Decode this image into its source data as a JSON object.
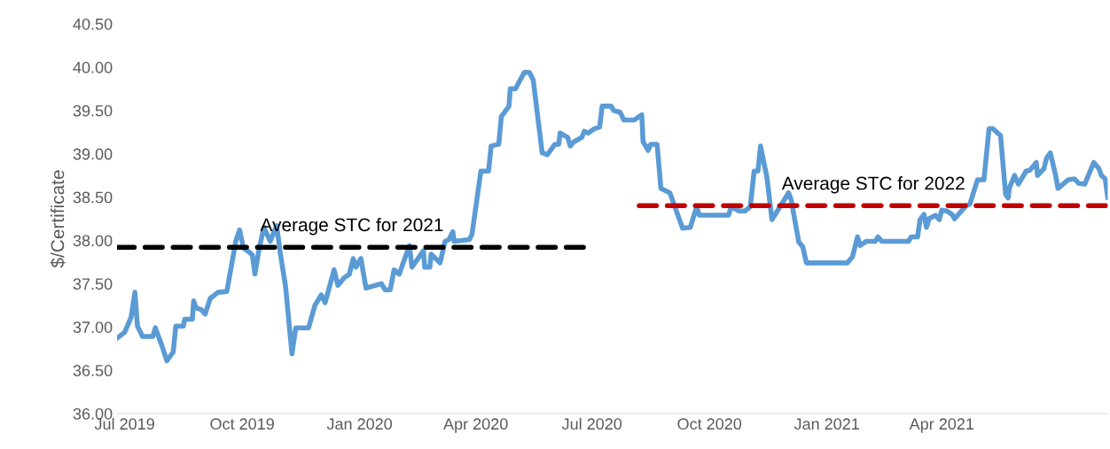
{
  "chart_data": {
    "type": "line",
    "ylabel": "$/Certificate",
    "xlim": [
      "2019-06-25",
      "2021-08-09"
    ],
    "xticks": [
      {
        "value": "2019-07-01",
        "label": "Jul 2019"
      },
      {
        "value": "2019-10-01",
        "label": "Oct 2019"
      },
      {
        "value": "2020-01-01",
        "label": "Jan 2020"
      },
      {
        "value": "2020-04-01",
        "label": "Apr 2020"
      },
      {
        "value": "2020-07-01",
        "label": "Jul 2020"
      },
      {
        "value": "2020-10-01",
        "label": "Oct 2020"
      },
      {
        "value": "2021-01-01",
        "label": "Jan 2021"
      },
      {
        "value": "2021-04-01",
        "label": "Apr 2021"
      }
    ],
    "ylim": [
      36,
      40.5
    ],
    "yticks": [
      {
        "value": 36,
        "label": "36.00"
      },
      {
        "value": 36.5,
        "label": "36.50"
      },
      {
        "value": 37,
        "label": "37.00"
      },
      {
        "value": 37.5,
        "label": "37.50"
      },
      {
        "value": 38,
        "label": "38.00"
      },
      {
        "value": 38.5,
        "label": "38.50"
      },
      {
        "value": 39,
        "label": "39.00"
      },
      {
        "value": 39.5,
        "label": "39.50"
      },
      {
        "value": 40,
        "label": "40.00"
      },
      {
        "value": 40.5,
        "label": "40.50"
      }
    ],
    "grid": false,
    "series": [
      {
        "color": "#5b9bd5",
        "line_style": "solid",
        "x": [
          "2019-06-25",
          "2019-07-01",
          "2019-07-06",
          "2019-07-09",
          "2019-07-11",
          "2019-07-15",
          "2019-07-23",
          "2019-07-25",
          "2019-07-30",
          "2019-08-03",
          "2019-08-08",
          "2019-08-10",
          "2019-08-16",
          "2019-08-17",
          "2019-08-23",
          "2019-08-24",
          "2019-08-26",
          "2019-08-30",
          "2019-09-02",
          "2019-09-06",
          "2019-09-12",
          "2019-09-19",
          "2019-09-23",
          "2019-09-26",
          "2019-09-29",
          "2019-10-02",
          "2019-10-07",
          "2019-10-09",
          "2019-10-11",
          "2019-10-14",
          "2019-10-18",
          "2019-10-23",
          "2019-10-28",
          "2019-10-31",
          "2019-11-04",
          "2019-11-09",
          "2019-11-12",
          "2019-11-22",
          "2019-11-27",
          "2019-12-02",
          "2019-12-05",
          "2019-12-12",
          "2019-12-15",
          "2019-12-20",
          "2019-12-24",
          "2019-12-27",
          "2019-12-29",
          "2020-01-02",
          "2020-01-06",
          "2020-01-18",
          "2020-01-21",
          "2020-01-25",
          "2020-01-28",
          "2020-02-01",
          "2020-02-09",
          "2020-02-11",
          "2020-02-20",
          "2020-02-21",
          "2020-02-25",
          "2020-02-26",
          "2020-03-04",
          "2020-03-08",
          "2020-03-11",
          "2020-03-14",
          "2020-03-15",
          "2020-03-27",
          "2020-03-29",
          "2020-04-05",
          "2020-04-11",
          "2020-04-13",
          "2020-04-19",
          "2020-04-21",
          "2020-04-27",
          "2020-04-28",
          "2020-05-02",
          "2020-05-09",
          "2020-05-13",
          "2020-05-16",
          "2020-05-23",
          "2020-05-27",
          "2020-06-02",
          "2020-06-05",
          "2020-06-06",
          "2020-06-12",
          "2020-06-14",
          "2020-06-17",
          "2020-06-23",
          "2020-06-25",
          "2020-06-28",
          "2020-07-03",
          "2020-07-07",
          "2020-07-09",
          "2020-07-16",
          "2020-07-18",
          "2020-07-23",
          "2020-07-26",
          "2020-08-03",
          "2020-08-09",
          "2020-08-10",
          "2020-08-14",
          "2020-08-16",
          "2020-08-21",
          "2020-08-24",
          "2020-08-31",
          "2020-09-10",
          "2020-09-16",
          "2020-09-21",
          "2020-09-23",
          "2020-10-16",
          "2020-10-18",
          "2020-10-24",
          "2020-10-29",
          "2020-11-02",
          "2020-11-05",
          "2020-11-08",
          "2020-11-10",
          "2020-11-15",
          "2020-11-19",
          "2020-12-02",
          "2020-12-04",
          "2020-12-10",
          "2020-12-13",
          "2020-12-16",
          "2021-01-17",
          "2021-01-21",
          "2021-01-25",
          "2021-01-27",
          "2021-02-01",
          "2021-02-08",
          "2021-02-10",
          "2021-02-13",
          "2021-03-06",
          "2021-03-08",
          "2021-03-13",
          "2021-03-15",
          "2021-03-18",
          "2021-03-20",
          "2021-03-22",
          "2021-03-27",
          "2021-03-30",
          "2021-04-01",
          "2021-04-05",
          "2021-04-09",
          "2021-04-11",
          "2021-04-20",
          "2021-04-23",
          "2021-04-29",
          "2021-05-04",
          "2021-05-08",
          "2021-05-11",
          "2021-05-17",
          "2021-05-21",
          "2021-05-23",
          "2021-05-24",
          "2021-05-28",
          "2021-05-31",
          "2021-06-06",
          "2021-06-09",
          "2021-06-14",
          "2021-06-15",
          "2021-06-20",
          "2021-06-22",
          "2021-06-25",
          "2021-06-29",
          "2021-07-01",
          "2021-07-09",
          "2021-07-14",
          "2021-07-17",
          "2021-07-22",
          "2021-07-29",
          "2021-08-02",
          "2021-08-04",
          "2021-08-07",
          "2021-08-09"
        ],
        "values": [
          36.87,
          36.94,
          37.11,
          37.4,
          37.01,
          36.89,
          36.89,
          36.99,
          36.79,
          36.61,
          36.71,
          37.01,
          37.01,
          37.09,
          37.09,
          37.3,
          37.22,
          37.2,
          37.15,
          37.33,
          37.4,
          37.41,
          37.74,
          37.99,
          38.12,
          37.91,
          37.86,
          37.83,
          37.61,
          37.88,
          38.15,
          37.99,
          38.17,
          37.84,
          37.47,
          36.69,
          36.99,
          36.99,
          37.25,
          37.37,
          37.28,
          37.66,
          37.48,
          37.57,
          37.61,
          37.79,
          37.69,
          37.79,
          37.45,
          37.5,
          37.43,
          37.43,
          37.66,
          37.61,
          37.94,
          37.69,
          37.88,
          37.69,
          37.69,
          37.84,
          37.74,
          37.99,
          38.01,
          38.1,
          37.99,
          38.01,
          38.07,
          38.8,
          38.8,
          39.09,
          39.11,
          39.43,
          39.55,
          39.75,
          39.75,
          39.94,
          39.94,
          39.85,
          39.01,
          38.99,
          39.11,
          39.11,
          39.24,
          39.19,
          39.09,
          39.14,
          39.19,
          39.26,
          39.24,
          39.29,
          39.31,
          39.55,
          39.55,
          39.5,
          39.48,
          39.39,
          39.39,
          39.45,
          39.14,
          39.04,
          39.11,
          39.11,
          38.6,
          38.55,
          38.14,
          38.15,
          38.39,
          38.29,
          38.29,
          38.39,
          38.34,
          38.34,
          38.39,
          38.8,
          38.8,
          39.09,
          38.73,
          38.24,
          38.55,
          38.47,
          37.98,
          37.93,
          37.74,
          37.74,
          37.81,
          38.04,
          37.94,
          37.99,
          37.99,
          38.04,
          37.99,
          37.99,
          38.04,
          38.04,
          38.24,
          38.3,
          38.15,
          38.25,
          38.29,
          38.24,
          38.35,
          38.34,
          38.3,
          38.25,
          38.4,
          38.42,
          38.7,
          38.7,
          39.29,
          39.29,
          39.21,
          38.53,
          38.49,
          38.61,
          38.75,
          38.65,
          38.8,
          38.81,
          38.9,
          38.75,
          38.83,
          38.95,
          39.01,
          38.76,
          38.6,
          38.7,
          38.71,
          38.66,
          38.65,
          38.9,
          38.83,
          38.75,
          38.71,
          38.49
        ]
      },
      {
        "name": "Average STC for 2021",
        "color": "#000000",
        "line_style": "dashed",
        "x": [
          "2019-06-25",
          "2020-06-27"
        ],
        "values": [
          37.92,
          37.92
        ]
      },
      {
        "name": "Average STC for 2022",
        "color": "#c00000",
        "line_style": "dashed",
        "x": [
          "2020-08-07",
          "2021-08-09"
        ],
        "values": [
          38.4,
          38.4
        ]
      }
    ]
  }
}
